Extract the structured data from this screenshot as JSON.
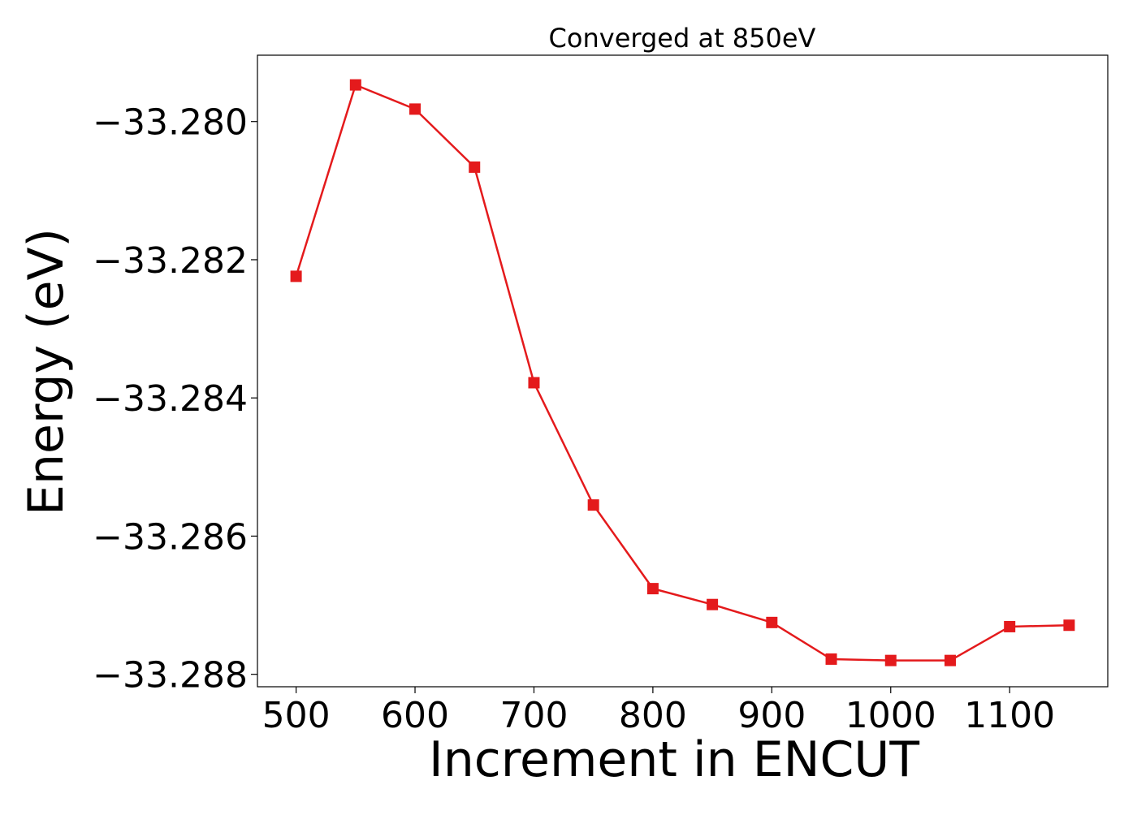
{
  "chart_data": {
    "type": "line",
    "title": "Converged at 850eV",
    "xlabel": "Increment in ENCUT",
    "ylabel": "Energy (eV)",
    "x": [
      500,
      550,
      600,
      650,
      700,
      750,
      800,
      850,
      900,
      950,
      1000,
      1050,
      1100,
      1150
    ],
    "series": [
      {
        "values": [
          -33.28224,
          -33.27947,
          -33.27982,
          -33.28066,
          -33.28378,
          -33.28555,
          -33.28676,
          -33.28699,
          -33.28725,
          -33.28778,
          -33.2878,
          -33.2878,
          -33.28731,
          -33.28729
        ],
        "color": "#e41a1c",
        "marker": "square"
      }
    ],
    "xlim": [
      467.5,
      1182.5
    ],
    "ylim": [
      -33.28818,
      -33.27904
    ],
    "xticks": [
      500,
      600,
      700,
      800,
      900,
      1000,
      1100
    ],
    "xtick_labels": [
      "500",
      "600",
      "700",
      "800",
      "900",
      "1000",
      "1100"
    ],
    "yticks": [
      -33.28,
      -33.282,
      -33.284,
      -33.286,
      -33.288
    ],
    "ytick_labels": [
      "−33.280",
      "−33.282",
      "−33.284",
      "−33.286",
      "−33.288"
    ],
    "grid": false,
    "legend": "none"
  }
}
